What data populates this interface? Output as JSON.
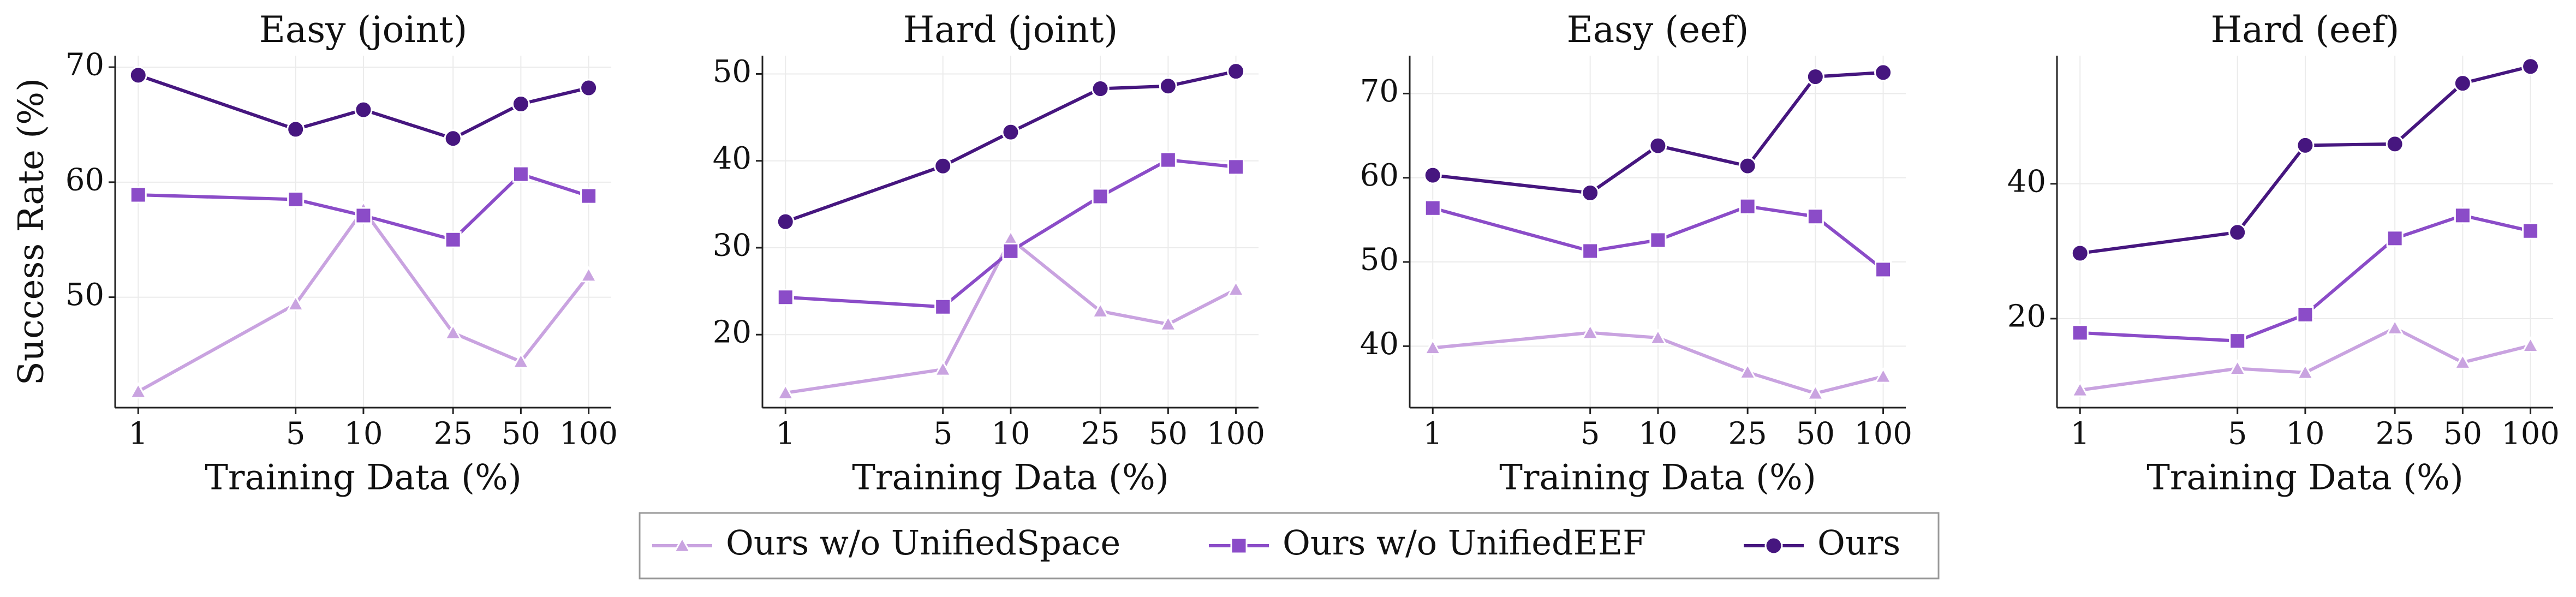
{
  "chart_data": [
    {
      "type": "line",
      "title": "Easy (joint)",
      "ylabel": "Success Rate (%)",
      "xlabel": "Training Data (%)",
      "x": [
        1,
        5,
        10,
        25,
        50,
        100
      ],
      "xscale": "log",
      "xlim": [
        0.79,
        126
      ],
      "xticks": [
        1,
        5,
        10,
        25,
        50,
        100
      ],
      "ylim": [
        40.4,
        71
      ],
      "yticks": [
        50,
        60,
        70
      ],
      "grid": true,
      "series": [
        {
          "values": [
            41.8,
            49.4,
            57.6,
            46.9,
            44.4,
            51.9
          ]
        },
        {
          "values": [
            58.9,
            58.5,
            57.1,
            55.0,
            60.7,
            58.8
          ]
        },
        {
          "values": [
            69.3,
            64.6,
            66.3,
            63.8,
            66.8,
            68.2
          ]
        }
      ]
    },
    {
      "type": "line",
      "title": "Hard (joint)",
      "xlabel": "Training Data (%)",
      "x": [
        1,
        5,
        10,
        25,
        50,
        100
      ],
      "xscale": "log",
      "xlim": [
        0.79,
        126
      ],
      "xticks": [
        1,
        5,
        10,
        25,
        50,
        100
      ],
      "ylim": [
        11.6,
        52.1
      ],
      "yticks": [
        20,
        30,
        40,
        50
      ],
      "grid": true,
      "series": [
        {
          "values": [
            13.3,
            16.0,
            31.0,
            22.7,
            21.2,
            25.2
          ]
        },
        {
          "values": [
            24.3,
            23.2,
            29.6,
            35.9,
            40.1,
            39.3
          ]
        },
        {
          "values": [
            33.0,
            39.4,
            43.3,
            48.3,
            48.6,
            50.3
          ]
        }
      ]
    },
    {
      "type": "line",
      "title": "Easy (eef)",
      "xlabel": "Training Data (%)",
      "x": [
        1,
        5,
        10,
        25,
        50,
        100
      ],
      "xscale": "log",
      "xlim": [
        0.79,
        126
      ],
      "xticks": [
        1,
        5,
        10,
        25,
        50,
        100
      ],
      "ylim": [
        32.7,
        74.5
      ],
      "yticks": [
        40,
        50,
        60,
        70
      ],
      "grid": true,
      "series": [
        {
          "values": [
            39.8,
            41.6,
            41.0,
            36.9,
            34.4,
            36.4
          ]
        },
        {
          "values": [
            56.4,
            51.3,
            52.6,
            56.6,
            55.4,
            49.1
          ]
        },
        {
          "values": [
            60.3,
            58.2,
            63.8,
            61.4,
            72.0,
            72.5
          ]
        }
      ]
    },
    {
      "type": "line",
      "title": "Hard (eef)",
      "xlabel": "Training Data (%)",
      "x": [
        1,
        5,
        10,
        25,
        50,
        100
      ],
      "xscale": "log",
      "xlim": [
        0.79,
        126
      ],
      "xticks": [
        1,
        5,
        10,
        25,
        50,
        100
      ],
      "ylim": [
        6.8,
        59
      ],
      "yticks": [
        20,
        40
      ],
      "grid": true,
      "series": [
        {
          "values": [
            9.4,
            12.6,
            12.0,
            18.6,
            13.5,
            16.0
          ]
        },
        {
          "values": [
            17.9,
            16.7,
            20.6,
            31.9,
            35.3,
            33.0
          ]
        },
        {
          "values": [
            29.7,
            32.8,
            45.7,
            45.9,
            54.9,
            57.4
          ]
        }
      ]
    }
  ],
  "legend": {
    "position": "bottom",
    "entries": [
      {
        "name": "Ours w/o UnifiedSpace",
        "color": "#c9a3e0",
        "marker": "triangle"
      },
      {
        "name": "Ours w/o UnifiedEEF",
        "color": "#8b4cc8",
        "marker": "square"
      },
      {
        "name": "Ours",
        "color": "#46167f",
        "marker": "circle"
      }
    ]
  }
}
